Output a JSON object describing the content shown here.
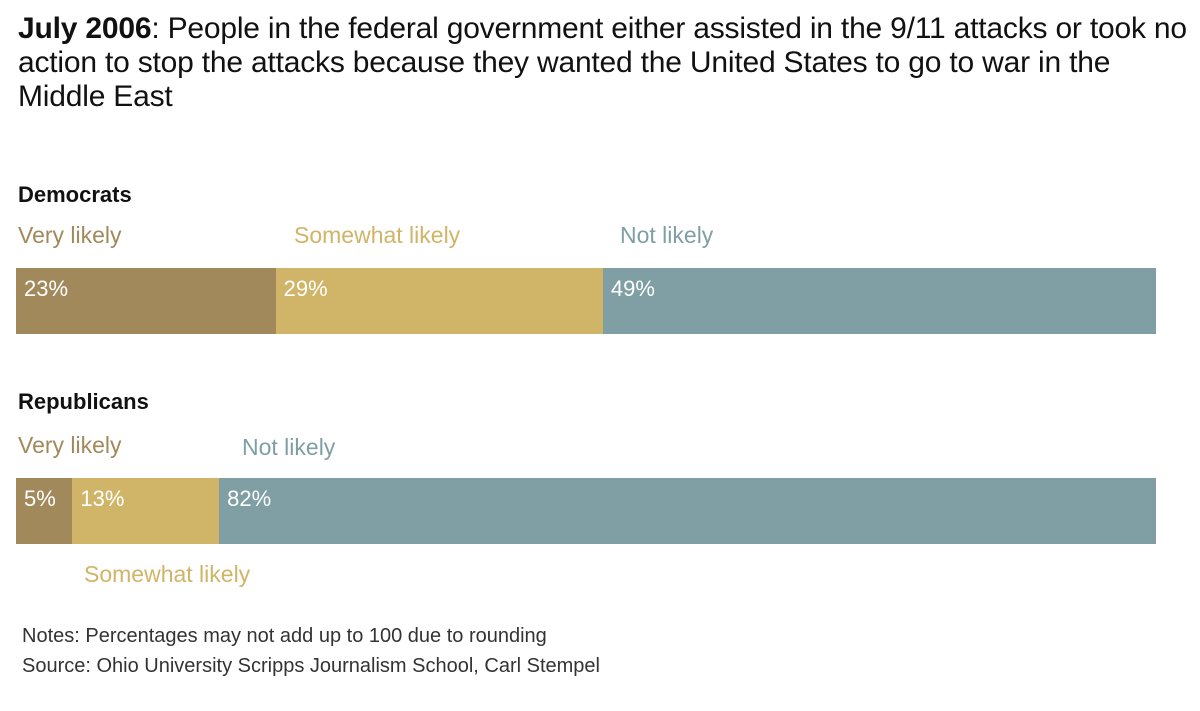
{
  "title": {
    "bold": "July 2006",
    "rest": ": People in the federal government either assisted in the 9/11 attacks or took no action to stop the attacks because they wanted the United States to go to war in the Middle East"
  },
  "colors": {
    "very": "#a1895b",
    "somewhat": "#d0b467",
    "not": "#7f9fa4"
  },
  "chart_data": {
    "type": "bar",
    "orientation": "horizontal-stacked",
    "title": "July 2006: People in the federal government either assisted in the 9/11 attacks or took no action to stop the attacks because they wanted the United States to go to war in the Middle East",
    "categories": [
      "Democrats",
      "Republicans"
    ],
    "series": [
      {
        "name": "Very likely",
        "values": [
          23,
          5
        ],
        "labels": [
          "23%",
          "5%"
        ]
      },
      {
        "name": "Somewhat likely",
        "values": [
          29,
          13
        ],
        "labels": [
          "29%",
          "13%"
        ]
      },
      {
        "name": "Not likely",
        "values": [
          49,
          82
        ],
        "labels": [
          "49%",
          "82%"
        ]
      }
    ],
    "xlim": [
      0,
      101
    ]
  },
  "groups": [
    {
      "name": "Democrats",
      "legend": {
        "very": "Very likely",
        "somewhat": "Somewhat likely",
        "not": "Not likely"
      }
    },
    {
      "name": "Republicans",
      "legend": {
        "very": "Very likely",
        "somewhat": "Somewhat likely",
        "not": "Not likely"
      }
    }
  ],
  "notes": "Notes: Percentages may not add up to 100 due to rounding",
  "source": "Source: Ohio University Scripps Journalism School, Carl Stempel"
}
